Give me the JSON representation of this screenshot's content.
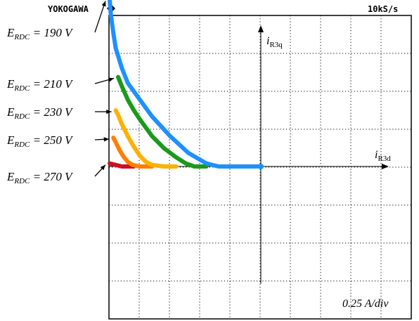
{
  "header": {
    "brand": "YOKOGAWA",
    "brand_mark": "diamond-logo-icon",
    "sample_rate": "10kS/s"
  },
  "chart_data": {
    "type": "line",
    "x_axis_label": "iR3d",
    "y_axis_label": "iR3q",
    "scale_label": "0.25 A/div",
    "divisions": {
      "x": 10,
      "y": 8
    },
    "grid": true,
    "units": "A",
    "series": [
      {
        "name": "ERDC = 190 V",
        "label_main": "E",
        "label_sub": "RDC",
        "label_value": " = 190 V",
        "color": "#1e90ff",
        "x": [
          -1.25,
          -1.24,
          -1.22,
          -1.2,
          -1.15,
          -1.1,
          -1.0,
          -0.9,
          -0.75,
          -0.6,
          -0.45,
          -0.35,
          -0.2,
          0.0
        ],
        "y": [
          1.1,
          1.0,
          0.88,
          0.78,
          0.65,
          0.55,
          0.44,
          0.33,
          0.2,
          0.09,
          0.02,
          0.0,
          0.0,
          0.0
        ]
      },
      {
        "name": "ERDC = 210 V",
        "label_main": "E",
        "label_sub": "RDC",
        "label_value": " = 210 V",
        "color": "#1a9a1a",
        "x": [
          -1.18,
          -1.15,
          -1.1,
          -1.05,
          -1.0,
          -0.9,
          -0.8,
          -0.7,
          -0.62,
          -0.55,
          -0.5,
          -0.45
        ],
        "y": [
          0.59,
          0.53,
          0.44,
          0.37,
          0.31,
          0.2,
          0.12,
          0.06,
          0.02,
          0.0,
          0.0,
          0.0
        ]
      },
      {
        "name": "ERDC = 230 V",
        "label_main": "E",
        "label_sub": "RDC",
        "label_value": " = 230 V",
        "color": "#ffb000",
        "x": [
          -1.2,
          -1.18,
          -1.15,
          -1.1,
          -1.05,
          -1.0,
          -0.95,
          -0.9,
          -0.8,
          -0.7
        ],
        "y": [
          0.37,
          0.34,
          0.28,
          0.2,
          0.13,
          0.07,
          0.03,
          0.01,
          0.0,
          0.0
        ]
      },
      {
        "name": "ERDC = 250 V",
        "label_main": "E",
        "label_sub": "RDC",
        "label_value": " = 250 V",
        "color": "#ff7f00",
        "x": [
          -1.22,
          -1.2,
          -1.17,
          -1.14,
          -1.1,
          -1.06,
          -1.0,
          -0.9
        ],
        "y": [
          0.19,
          0.16,
          0.11,
          0.07,
          0.03,
          0.01,
          0.0,
          0.0
        ]
      },
      {
        "name": "ERDC = 270 V",
        "label_main": "E",
        "label_sub": "RDC",
        "label_value": " = 270 V",
        "color": "#cc1122",
        "x": [
          -1.25,
          -1.2,
          -1.15,
          -1.1,
          -1.05
        ],
        "y": [
          0.02,
          0.01,
          0.0,
          0.0,
          0.0
        ]
      }
    ]
  }
}
